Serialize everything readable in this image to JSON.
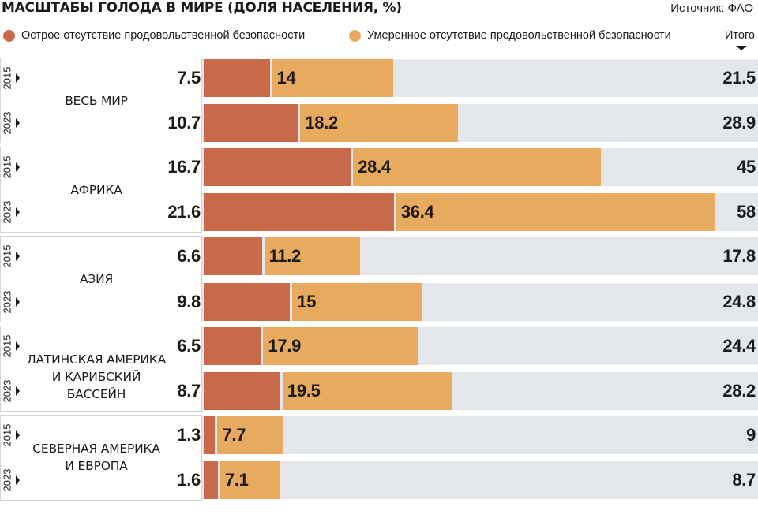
{
  "header": {
    "title": "МАСШТАБЫ ГОЛОДА В МИРЕ (ДОЛЯ НАСЕЛЕНИЯ, %)",
    "source": "Источник: ФАО"
  },
  "legend": {
    "acute": "Острое отсутствие продовольственной безопасности",
    "moderate": "Умеренное отсутствие продовольственной безопасности",
    "total": "Итого"
  },
  "colors": {
    "acute": "#c8694a",
    "moderate": "#e8aa5e",
    "track": "#e3e7ec"
  },
  "chart_data": {
    "type": "bar",
    "orientation": "horizontal",
    "stacked": true,
    "title": "МАСШТАБЫ ГОЛОДА В МИРЕ (ДОЛЯ НАСЕЛЕНИЯ, %)",
    "xlim": [
      0,
      58
    ],
    "series": [
      {
        "name": "Острое отсутствие продовольственной безопасности",
        "key": "acute"
      },
      {
        "name": "Умеренное отсутствие продовольственной безопасности",
        "key": "moderate"
      }
    ],
    "groups": [
      {
        "region": "ВЕСЬ МИР",
        "rows": [
          {
            "year": "2015",
            "acute": 7.5,
            "moderate": 14,
            "total": 21.5
          },
          {
            "year": "2023",
            "acute": 10.7,
            "moderate": 18.2,
            "total": 28.9
          }
        ]
      },
      {
        "region": "АФРИКА",
        "rows": [
          {
            "year": "2015",
            "acute": 16.7,
            "moderate": 28.4,
            "total": 45
          },
          {
            "year": "2023",
            "acute": 21.6,
            "moderate": 36.4,
            "total": 58
          }
        ]
      },
      {
        "region": "АЗИЯ",
        "rows": [
          {
            "year": "2015",
            "acute": 6.6,
            "moderate": 11.2,
            "total": 17.8
          },
          {
            "year": "2023",
            "acute": 9.8,
            "moderate": 15,
            "total": 24.8
          }
        ]
      },
      {
        "region": "ЛАТИНСКАЯ АМЕРИКА\nИ КАРИБСКИЙ БАССЕЙН",
        "rows": [
          {
            "year": "2015",
            "acute": 6.5,
            "moderate": 17.9,
            "total": 24.4
          },
          {
            "year": "2023",
            "acute": 8.7,
            "moderate": 19.5,
            "total": 28.2
          }
        ]
      },
      {
        "region": "СЕВЕРНАЯ АМЕРИКА\nИ ЕВРОПА",
        "rows": [
          {
            "year": "2015",
            "acute": 1.3,
            "moderate": 7.7,
            "total": 9
          },
          {
            "year": "2023",
            "acute": 1.6,
            "moderate": 7.1,
            "total": 8.7
          }
        ]
      }
    ]
  }
}
